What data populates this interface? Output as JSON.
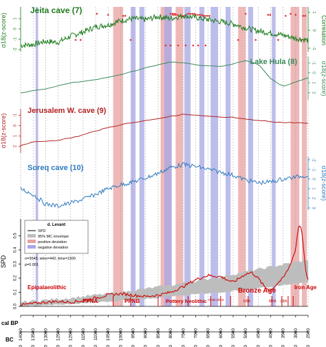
{
  "figure": {
    "type": "multi-panel stacked time series",
    "colors": {
      "jeita": "#1e7b1e",
      "hula": "#3a8a5a",
      "jerusalem": "#b22222",
      "soreq": "#2e7bbf",
      "spd": "#cc0000",
      "envelope": "#bdbdbd",
      "positive_band": "#e8a0a0",
      "negative_band": "#a7a7e6",
      "correlation_marks": "#e03030"
    },
    "panels": [
      {
        "id": "jeita",
        "title": "Jeita cave (7)",
        "ylabel": "σ18(z-score)",
        "ylabel_right": "Correlation",
        "ticks": [
          "1",
          "0",
          "-1",
          "-2"
        ],
        "ticks_right": [
          "1",
          "0",
          "-1"
        ]
      },
      {
        "id": "hula",
        "title": "Lake Hula (8)",
        "ylabel_right": "σ18(z-score)",
        "ticks_right": [
          "-1",
          "0",
          "1",
          "2"
        ]
      },
      {
        "id": "jerusalem",
        "title": "Jerusalem W. cave (9)",
        "ylabel": "σ18(z-score)",
        "ticks": [
          "-1",
          "0",
          "1",
          "2"
        ]
      },
      {
        "id": "soreq",
        "title": "Soreq cave (10)",
        "ylabel_right": "σ18(z-score)",
        "ticks_right": [
          "-2",
          "-1",
          "0",
          "1",
          "2",
          "3"
        ]
      },
      {
        "id": "spd",
        "ylabel": "SPD",
        "ticks": [
          "0.0",
          "0.1",
          "0.2",
          "0.3",
          "0.4",
          "0.5"
        ]
      }
    ],
    "legend": {
      "title": "d. Levant",
      "entries": [
        "SPD",
        "95% MC envelope",
        "positive deviation",
        "negative deviation"
      ],
      "stats": [
        "n=3043, sites=442, bins=1300",
        "p=0.001"
      ]
    },
    "periods": [
      {
        "label": "Epipalaeolithic",
        "size": "big"
      },
      {
        "label": "PPNA",
        "size": "big"
      },
      {
        "label": "PPNB",
        "size": "big"
      },
      {
        "label": "Pottery Neolithic",
        "size": "big"
      },
      {
        "label": "Chalcolithic",
        "size": "small"
      },
      {
        "label": "Bronze Age",
        "size": "large"
      },
      {
        "label": "EBA",
        "size": "small"
      },
      {
        "label": "MBA",
        "size": "small"
      },
      {
        "label": "LBA",
        "size": "small"
      },
      {
        "label": "Iron Age",
        "size": "big"
      }
    ],
    "axis_calbp": {
      "label": "cal BP",
      "ticks": [
        "14000",
        "13500",
        "13000",
        "12500",
        "12000",
        "11500",
        "11000",
        "10500",
        "10000",
        "9500",
        "9000",
        "8500",
        "8000",
        "7500",
        "7000",
        "6500",
        "6000",
        "5500",
        "5000",
        "4500",
        "4000",
        "3500",
        "3000",
        "2500"
      ]
    },
    "axis_bc": {
      "label": "BC",
      "ticks": [
        "12000",
        "11500",
        "11000",
        "10500",
        "10000",
        "9500",
        "9000",
        "8500",
        "8000",
        "7500",
        "7000",
        "6500",
        "6000",
        "5500",
        "5000",
        "4500",
        "4000",
        "3500",
        "3000",
        "2500",
        "2000",
        "1500",
        "1000",
        "500"
      ]
    }
  },
  "chart_data": {
    "type": "line",
    "x_unit": "cal BP",
    "xlim": [
      14000,
      2500
    ],
    "bands": {
      "positive": [
        [
          10300,
          9900
        ],
        [
          8400,
          8000
        ],
        [
          7800,
          7500
        ],
        [
          5300,
          5000
        ],
        [
          3200,
          2850
        ],
        [
          2750,
          2550
        ]
      ],
      "negative": [
        [
          13400,
          13300
        ],
        [
          9600,
          9400
        ],
        [
          9250,
          9050
        ],
        [
          8250,
          7950
        ],
        [
          7450,
          7200
        ],
        [
          6850,
          6650
        ],
        [
          6400,
          6100
        ],
        [
          5800,
          5600
        ],
        [
          4900,
          4700
        ],
        [
          3950,
          3800
        ]
      ]
    },
    "series": [
      {
        "name": "Jeita cave (7)",
        "x": [
          14000,
          13500,
          13000,
          12500,
          12000,
          11500,
          11000,
          10500,
          10000,
          9500,
          9000,
          8500,
          8000,
          7500,
          7000,
          6500,
          6000,
          5500,
          5000,
          4500,
          4000,
          3500,
          3000,
          2500
        ],
        "y": [
          -1.6,
          -1.5,
          -1.2,
          -1.3,
          -0.7,
          -0.3,
          0.2,
          0.4,
          0.8,
          1.0,
          0.9,
          1.2,
          1.0,
          1.3,
          1.1,
          0.9,
          0.7,
          0.5,
          0.1,
          -0.2,
          -0.4,
          -0.6,
          -0.9,
          -1.1
        ]
      },
      {
        "name": "Lake Hula (8)",
        "x": [
          14000,
          13000,
          12000,
          11000,
          10000,
          9000,
          8000,
          7500,
          7000,
          6000,
          5000,
          4500,
          4000,
          3500,
          3000,
          2500
        ],
        "y": [
          2.0,
          1.6,
          1.0,
          0.7,
          0.2,
          -0.5,
          -1.1,
          -1.0,
          -0.8,
          -0.6,
          -1.2,
          -0.9,
          0.6,
          1.4,
          0.9,
          0.5
        ]
      },
      {
        "name": "Jerusalem W. cave (9)",
        "x": [
          14000,
          13500,
          13000,
          12500,
          12000,
          11500,
          11000,
          10500,
          10000,
          9500,
          9000,
          8500,
          8000,
          7500,
          7000,
          6500,
          6000,
          5500,
          5000,
          4500,
          4000,
          3500,
          3000,
          2500
        ],
        "y": [
          1.9,
          1.6,
          1.5,
          1.4,
          1.2,
          0.9,
          0.5,
          0.2,
          -0.1,
          -0.3,
          -0.5,
          -0.7,
          -0.9,
          -1.1,
          -1.0,
          -0.9,
          -0.8,
          -0.8,
          -0.6,
          -0.5,
          -0.4,
          -0.3,
          -0.3,
          -0.2
        ]
      },
      {
        "name": "Soreq cave (10)",
        "x": [
          14000,
          13500,
          13000,
          12500,
          12000,
          11500,
          11000,
          10500,
          10000,
          9500,
          9000,
          8500,
          8000,
          7500,
          7000,
          6500,
          6000,
          5500,
          5000,
          4500,
          4000,
          3500,
          3000,
          2500
        ],
        "y": [
          1.0,
          1.6,
          2.6,
          2.8,
          2.5,
          2.1,
          1.6,
          1.0,
          0.6,
          0.3,
          -0.1,
          -0.6,
          -1.2,
          -1.5,
          -1.3,
          -1.0,
          -0.7,
          -0.4,
          0.1,
          0.4,
          0.3,
          0.0,
          -0.2,
          -0.4
        ]
      },
      {
        "name": "SPD",
        "x": [
          14000,
          13500,
          13000,
          12500,
          12000,
          11500,
          11000,
          10500,
          10000,
          9500,
          9000,
          8500,
          8000,
          7500,
          7000,
          6500,
          6000,
          5500,
          5000,
          4750,
          4500,
          4250,
          4000,
          3750,
          3500,
          3250,
          3000,
          2900,
          2800,
          2700,
          2600,
          2500
        ],
        "y": [
          0.01,
          0.02,
          0.03,
          0.035,
          0.03,
          0.04,
          0.06,
          0.08,
          0.09,
          0.08,
          0.07,
          0.08,
          0.1,
          0.14,
          0.19,
          0.22,
          0.21,
          0.17,
          0.23,
          0.24,
          0.2,
          0.14,
          0.11,
          0.16,
          0.2,
          0.28,
          0.4,
          0.56,
          0.58,
          0.45,
          0.25,
          0.18
        ]
      },
      {
        "name": "95% MC envelope",
        "x": [
          14000,
          12000,
          10000,
          8000,
          6000,
          4000,
          2500
        ],
        "lower": [
          0.0,
          0.015,
          0.04,
          0.07,
          0.1,
          0.14,
          0.17
        ],
        "upper": [
          0.03,
          0.06,
          0.1,
          0.15,
          0.21,
          0.28,
          0.33
        ]
      }
    ],
    "ylim": {
      "jeita": [
        -2,
        2
      ],
      "hula": [
        -1.5,
        2.5
      ],
      "jerusalem": [
        -1.5,
        2.5
      ],
      "soreq": [
        -2,
        3
      ],
      "spd": [
        0,
        0.6
      ]
    }
  }
}
